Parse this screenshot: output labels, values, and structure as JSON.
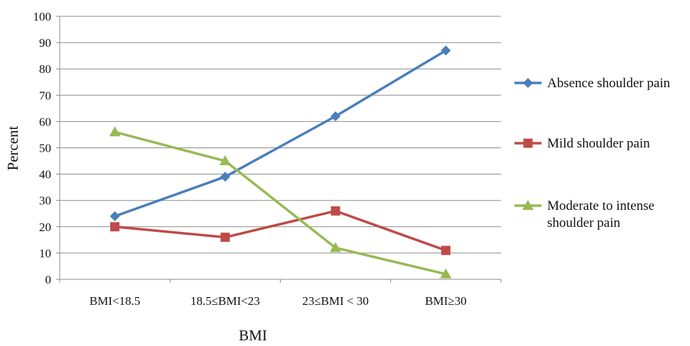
{
  "chart_data": {
    "type": "line",
    "categories": [
      "BMI<18.5",
      "18.5≤BMI<23",
      "23≤BMI < 30",
      "BMI≥30"
    ],
    "xlabel": "BMI",
    "ylabel": "Percent",
    "ylim": [
      0,
      100
    ],
    "yticks": [
      0,
      10,
      20,
      30,
      40,
      50,
      60,
      70,
      80,
      90,
      100
    ],
    "grid": true,
    "legend_position": "right",
    "series": [
      {
        "name": "Absence shoulder pain",
        "legend_lines": [
          "Absence shoulder pain"
        ],
        "values": [
          24,
          39,
          62,
          87
        ],
        "color": "#4A7EBB",
        "marker": "diamond"
      },
      {
        "name": "Mild shoulder pain",
        "legend_lines": [
          "Mild shoulder pain"
        ],
        "values": [
          20,
          16,
          26,
          11
        ],
        "color": "#BE4B48",
        "marker": "square"
      },
      {
        "name": "Moderate to intense shoulder pain",
        "legend_lines": [
          "Moderate to intense",
          "shoulder pain"
        ],
        "values": [
          56,
          45,
          12,
          2
        ],
        "color": "#98B954",
        "marker": "triangle"
      }
    ]
  }
}
